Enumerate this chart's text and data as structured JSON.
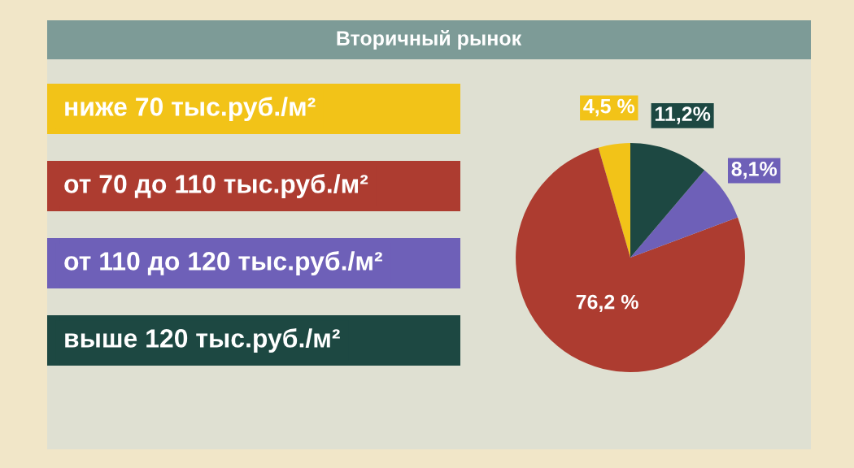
{
  "chart_data": {
    "type": "pie",
    "title": "Вторичный рынок",
    "categories": [
      "ниже 70 тыс.руб./м²",
      "от 70 до 110 тыс.руб./м²",
      "от 110 до 120 тыс.руб./м²",
      "выше 120 тыс.руб./м²"
    ],
    "values": [
      4.5,
      76.2,
      8.1,
      11.2
    ],
    "value_labels": [
      "4,5 %",
      "76,2 %",
      "8,1%",
      "11,2%"
    ],
    "colors": [
      "#f2c318",
      "#ad3c30",
      "#6e60b8",
      "#1d4842"
    ],
    "legend": "left"
  }
}
